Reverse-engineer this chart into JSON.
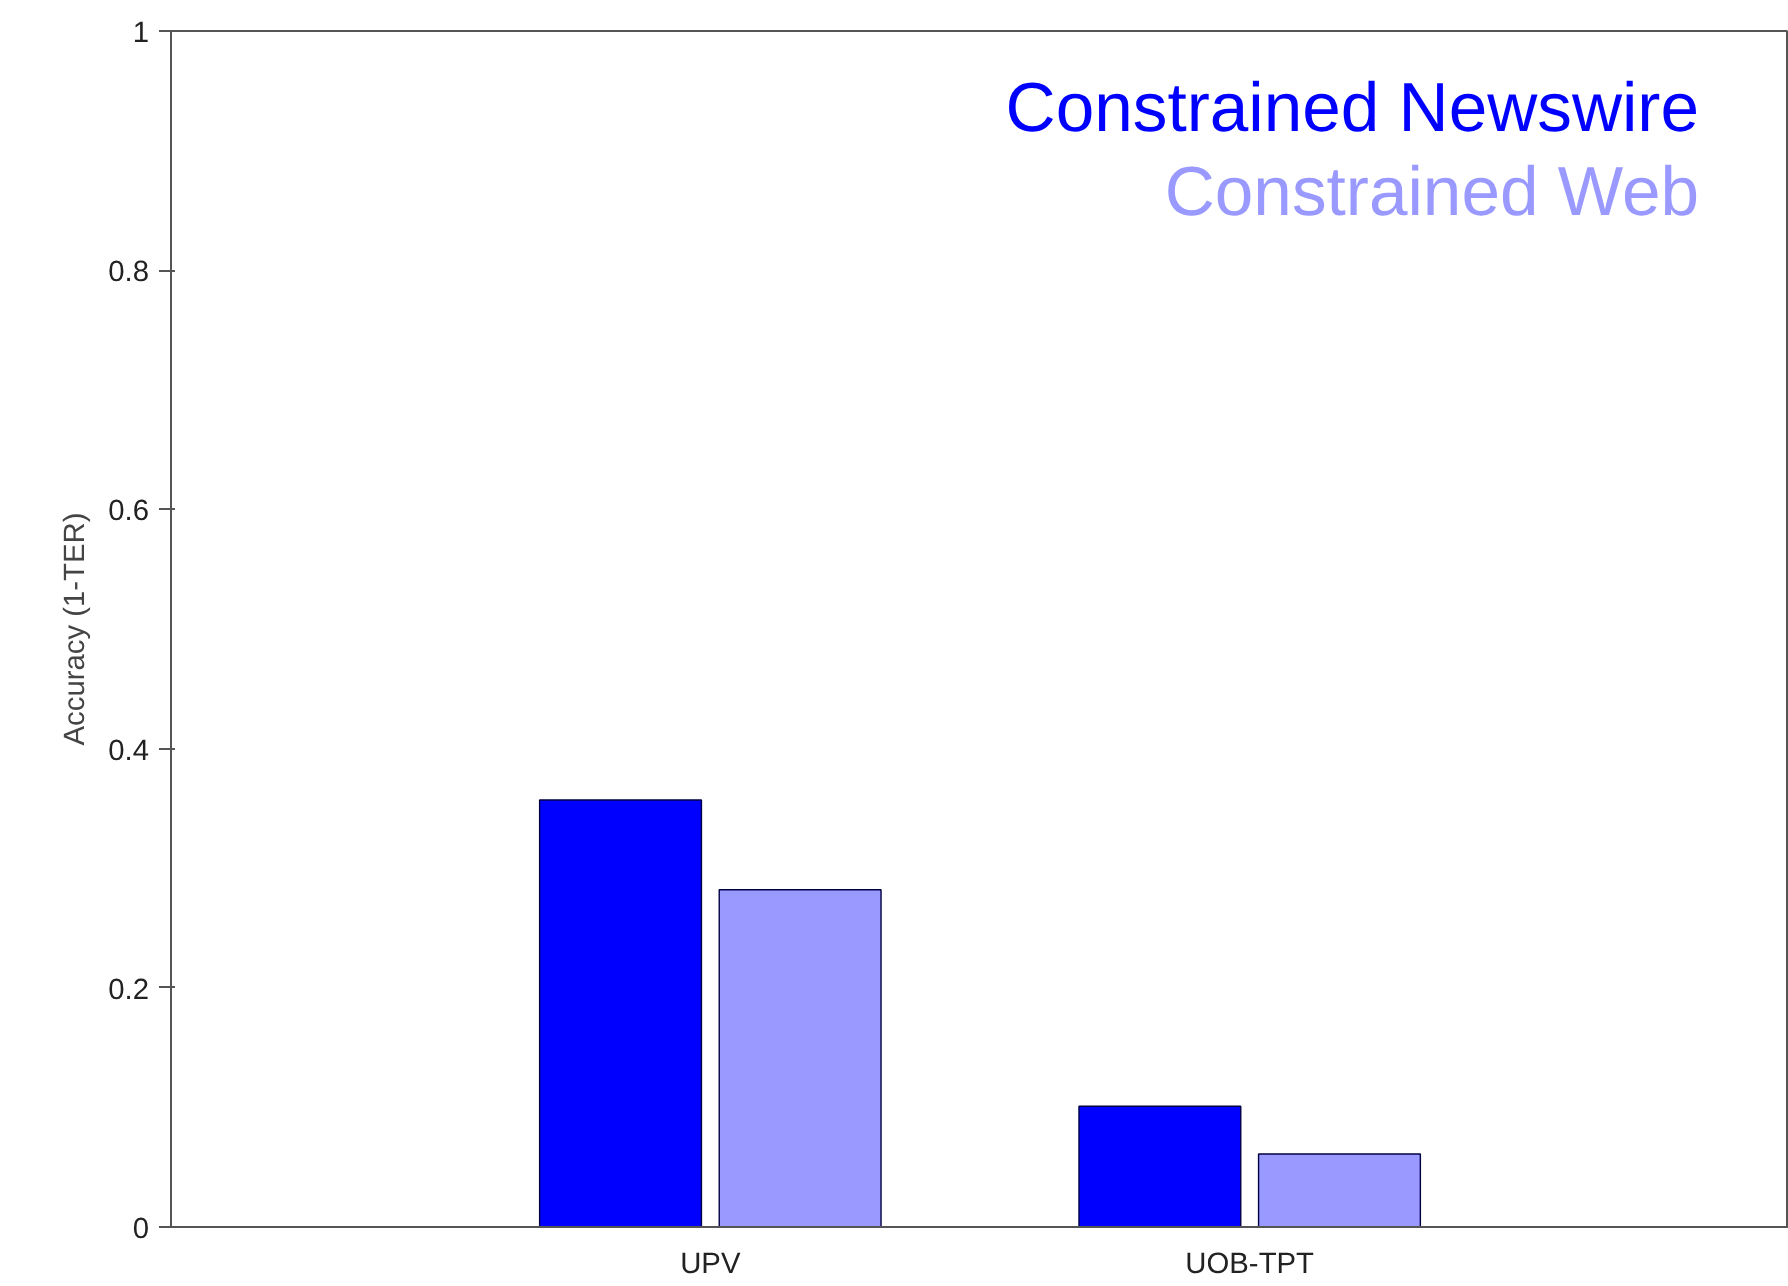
{
  "chart_data": {
    "type": "bar",
    "ylabel": "Accuracy (1-TER)",
    "categories": [
      "UPV",
      "UOB-TPT"
    ],
    "series": [
      {
        "name": "Constrained Newswire",
        "color": "#0000ff",
        "values": [
          0.357,
          0.101
        ]
      },
      {
        "name": "Constrained Web",
        "color": "#9999ff",
        "values": [
          0.282,
          0.061
        ]
      }
    ],
    "ylim": [
      0,
      1
    ],
    "yticks": [
      0,
      0.2,
      0.4,
      0.6,
      0.8,
      1
    ],
    "grid": false,
    "legend": "top right"
  }
}
